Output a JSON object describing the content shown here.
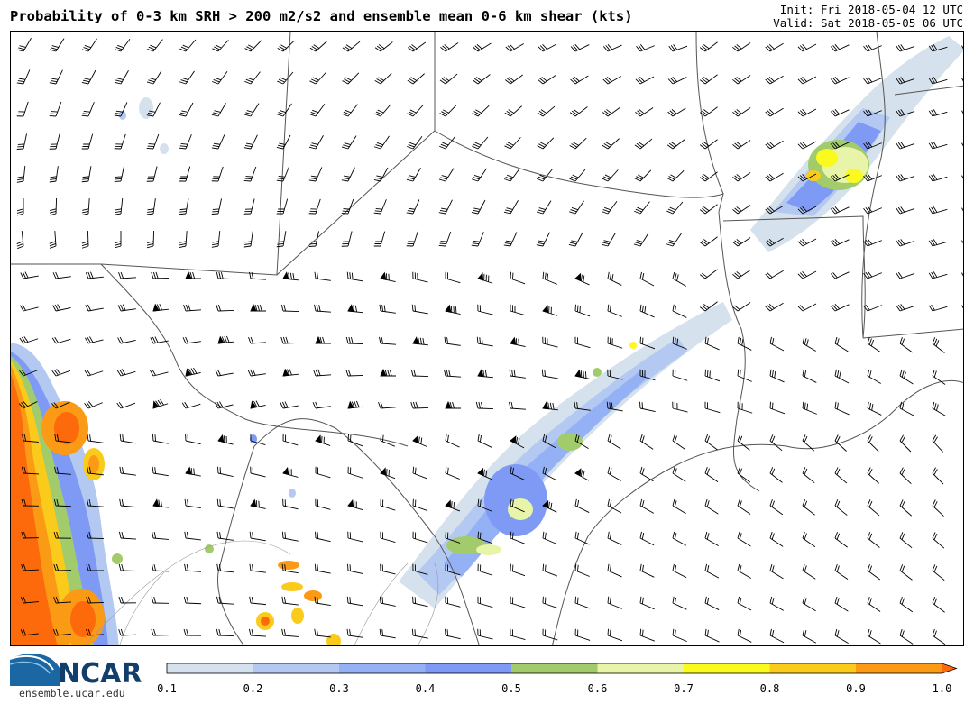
{
  "header": {
    "title": "Probability of 0-3 km SRH > 200 m2/s2 and ensemble mean 0-6 km shear (kts)",
    "init": "Init: Fri 2018-05-04 12 UTC",
    "valid": "Valid: Sat 2018-05-05 06 UTC"
  },
  "logo": {
    "name": "NCAR",
    "url": "ensemble.ucar.edu"
  },
  "colorbar": {
    "labels": [
      "0.1",
      "0.2",
      "0.3",
      "0.4",
      "0.5",
      "0.6",
      "0.7",
      "0.8",
      "0.9",
      "1.0"
    ],
    "colors": [
      "#d5e1ec",
      "#b3c9f2",
      "#94b1f5",
      "#7f9af5",
      "#a2cc6b",
      "#e8f5a8",
      "#fafa1e",
      "#fbcb1c",
      "#fb9a14"
    ]
  },
  "palette": {
    "background": "#ffffff",
    "border": "#000000",
    "state_lines": "#555555",
    "county_lines": "#888888",
    "logo_blue": "#123e6b",
    "swoosh": "#2a7fbd"
  }
}
